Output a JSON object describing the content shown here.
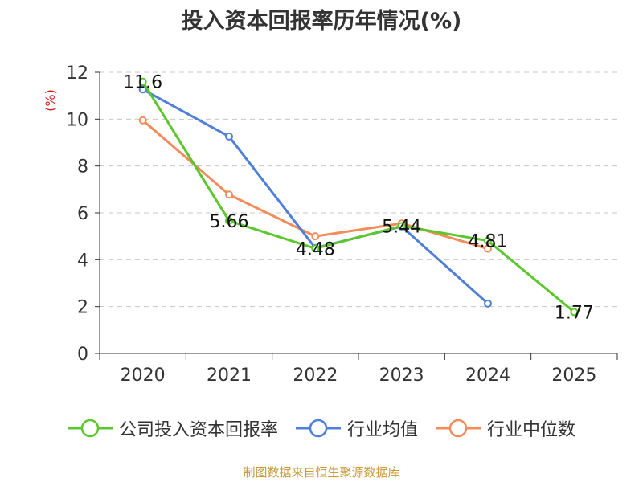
{
  "chart_data": {
    "type": "line",
    "title": "投入资本回报率历年情况(%)",
    "ylabel": "(%)",
    "xlabel": "",
    "categories": [
      "2020",
      "2021",
      "2022",
      "2023",
      "2024",
      "2025"
    ],
    "ylim": [
      0,
      12
    ],
    "yticks": [
      0,
      2,
      4,
      6,
      8,
      10,
      12
    ],
    "grid": true,
    "legend_position": "bottom",
    "series": [
      {
        "name": "公司投入资本回报率",
        "color": "#5ac72b",
        "values": [
          11.6,
          5.66,
          4.48,
          5.44,
          4.81,
          1.77
        ],
        "labels": [
          "11.6",
          "5.66",
          "4.48",
          "5.44",
          "4.81",
          "1.77"
        ]
      },
      {
        "name": "行业均值",
        "color": "#4f7fd8",
        "values": [
          11.27,
          9.26,
          4.5,
          5.42,
          2.13,
          null
        ]
      },
      {
        "name": "行业中位数",
        "color": "#f28c5a",
        "values": [
          9.95,
          6.78,
          5.0,
          5.55,
          4.47,
          null
        ]
      }
    ]
  },
  "source": "制图数据来自恒生聚源数据库"
}
